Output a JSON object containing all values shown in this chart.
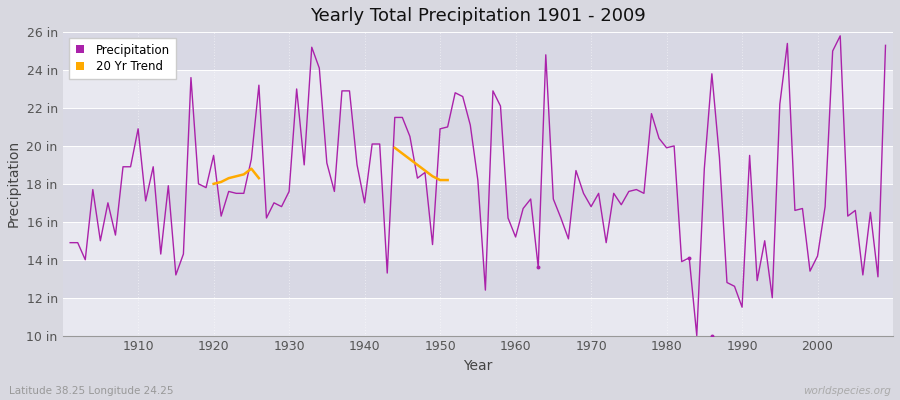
{
  "title": "Yearly Total Precipitation 1901 - 2009",
  "xlabel": "Year",
  "ylabel": "Precipitation",
  "x_label_bottom_left": "Latitude 38.25 Longitude 24.25",
  "x_label_bottom_right": "worldspecies.org",
  "ylim": [
    10,
    26
  ],
  "yticks": [
    10,
    12,
    14,
    16,
    18,
    20,
    22,
    24,
    26
  ],
  "ytick_labels": [
    "10 in",
    "12 in",
    "14 in",
    "16 in",
    "18 in",
    "20 in",
    "22 in",
    "24 in",
    "26 in"
  ],
  "xlim": [
    1900,
    2010
  ],
  "xticks": [
    1910,
    1920,
    1930,
    1940,
    1950,
    1960,
    1970,
    1980,
    1990,
    2000
  ],
  "bg_color": "#d8d8e0",
  "plot_bg_color": "#e8e8f0",
  "stripe_color": "#d8d8e2",
  "line_color": "#aa22aa",
  "trend_color": "#ffaa00",
  "precipitation_years": [
    1901,
    1902,
    1903,
    1904,
    1905,
    1906,
    1907,
    1908,
    1909,
    1910,
    1911,
    1912,
    1913,
    1914,
    1915,
    1916,
    1917,
    1918,
    1919,
    1920,
    1921,
    1922,
    1923,
    1924,
    1925,
    1926,
    1927,
    1928,
    1929,
    1930,
    1931,
    1932,
    1933,
    1934,
    1935,
    1936,
    1937,
    1938,
    1939,
    1940,
    1941,
    1942,
    1943,
    1944,
    1945,
    1946,
    1947,
    1948,
    1949,
    1950,
    1951,
    1952,
    1953,
    1954,
    1955,
    1956,
    1957,
    1958,
    1959,
    1960,
    1961,
    1962,
    1963,
    1964,
    1965,
    1966,
    1967,
    1968,
    1969,
    1970,
    1971,
    1972,
    1973,
    1974,
    1975,
    1976,
    1977,
    1978,
    1979,
    1980,
    1981,
    1982,
    1983,
    1984,
    1985,
    1986,
    1987,
    1988,
    1989,
    1990,
    1991,
    1992,
    1993,
    1994,
    1995,
    1996,
    1997,
    1998,
    1999,
    2000,
    2001,
    2002,
    2003,
    2004,
    2005,
    2006,
    2007,
    2008,
    2009
  ],
  "precipitation_values": [
    14.9,
    14.9,
    14.0,
    17.7,
    15.0,
    17.0,
    15.3,
    18.9,
    18.9,
    20.9,
    17.1,
    18.9,
    14.3,
    17.9,
    13.2,
    14.3,
    23.6,
    18.0,
    17.8,
    19.5,
    16.3,
    17.6,
    17.5,
    17.5,
    19.3,
    23.2,
    16.2,
    17.0,
    16.8,
    17.6,
    23.0,
    19.0,
    25.2,
    24.1,
    19.1,
    17.6,
    22.9,
    22.9,
    19.0,
    17.0,
    20.1,
    20.1,
    13.3,
    21.5,
    21.5,
    20.5,
    18.3,
    18.6,
    14.8,
    20.9,
    21.0,
    22.8,
    22.6,
    21.1,
    18.2,
    12.4,
    22.9,
    22.1,
    16.2,
    15.2,
    16.7,
    17.2,
    13.6,
    24.8,
    17.2,
    16.2,
    15.1,
    18.7,
    17.5,
    16.8,
    17.5,
    14.9,
    17.5,
    16.9,
    17.6,
    17.7,
    17.5,
    21.7,
    20.4,
    19.9,
    20.0,
    13.9,
    14.1,
    10.0,
    18.8,
    23.8,
    19.4,
    12.8,
    12.6,
    11.5,
    19.5,
    12.9,
    15.0,
    12.0,
    22.2,
    25.4,
    16.6,
    16.7,
    13.4,
    14.2,
    16.8,
    25.0,
    25.8,
    16.3,
    16.6,
    13.2,
    16.5,
    13.1,
    25.3
  ],
  "trend_years": [
    1920,
    1921,
    1922,
    1923,
    1924,
    1925,
    1926,
    1944,
    1945,
    1946,
    1947,
    1948,
    1949,
    1950,
    1951
  ],
  "trend_values": [
    18.0,
    18.1,
    18.3,
    18.4,
    18.5,
    18.8,
    18.3,
    19.9,
    19.6,
    19.3,
    19.0,
    18.7,
    18.4,
    18.2,
    18.2
  ],
  "isolated_dot_years": [
    1963,
    1983,
    1986
  ],
  "isolated_dot_values": [
    13.6,
    14.1,
    10.0
  ]
}
